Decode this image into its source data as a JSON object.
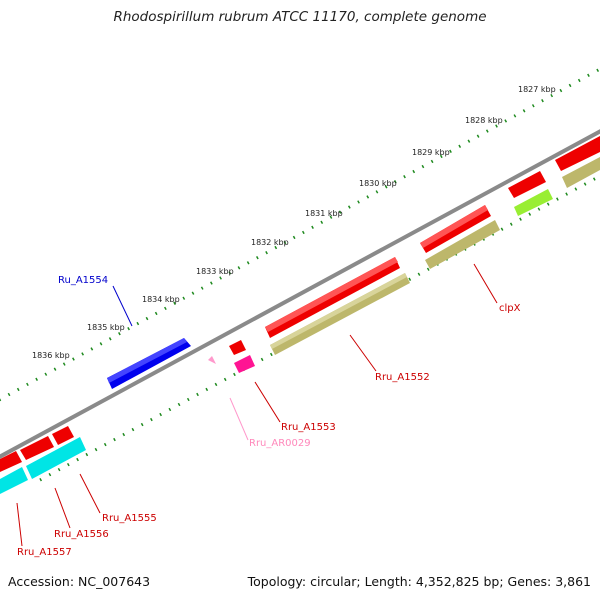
{
  "title": "Rhodospirillum rubrum ATCC 11170, complete genome",
  "accession": "Accession: NC_007643",
  "summary": "Topology: circular; Length: 4,352,825 bp; Genes: 3,861",
  "colors": {
    "backbone": "#8a8a8a",
    "ticks": "#1f8a1f",
    "cds": "#ff0000",
    "cds_label": "#cc0000",
    "rna": "#ff99cc",
    "rna_label": "#ff88bb",
    "cog_olive": "#bdb76b",
    "cog_cyan": "#00e5e5",
    "cog_lime": "#99ee33",
    "cog_magenta": "#ff1493",
    "blue_cds": "#0000ee"
  },
  "ruler": {
    "labels": [
      "1827 kbp",
      "1828 kbp",
      "1829 kbp",
      "1830 kbp",
      "1831 kbp",
      "1832 kbp",
      "1833 kbp",
      "1834 kbp",
      "1835 kbp",
      "1836 kbp"
    ]
  },
  "features": [
    {
      "label": "Ru_A1554",
      "color": "#0000cc"
    },
    {
      "label": "Rru_A1552",
      "color": "#cc0000"
    },
    {
      "label": "clpX",
      "color": "#cc0000"
    },
    {
      "label": "Rru_A1553",
      "color": "#cc0000"
    },
    {
      "label": "Rru_AR0029",
      "color": "#ff99cc"
    },
    {
      "label": "Rru_A1555",
      "color": "#cc0000"
    },
    {
      "label": "Rru_A1556",
      "color": "#cc0000"
    },
    {
      "label": "Rru_A1557",
      "color": "#cc0000"
    }
  ]
}
